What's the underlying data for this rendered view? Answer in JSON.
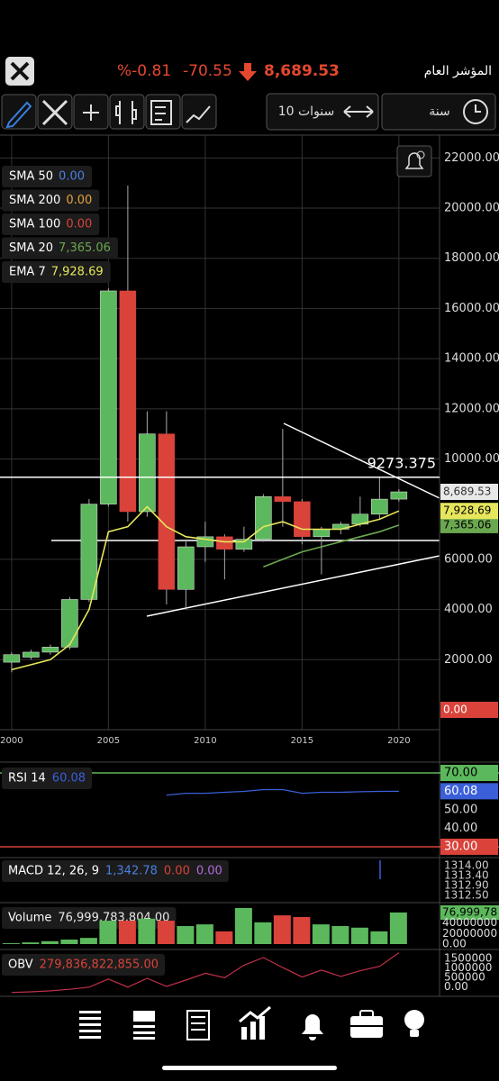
{
  "header": {
    "change_pct": "%-0.81",
    "change": "-70.55",
    "price": "8,689.53",
    "title": "المؤشر العام"
  },
  "toolbar": {
    "range": "10 سنوات",
    "interval": "سنة"
  },
  "chart_data": {
    "type": "candlestick",
    "x": [
      2000,
      2001,
      2002,
      2003,
      2004,
      2005,
      2006,
      2007,
      2008,
      2009,
      2010,
      2011,
      2012,
      2013,
      2014,
      2015,
      2016,
      2017,
      2018,
      2019,
      2020
    ],
    "open": [
      1900,
      2100,
      2300,
      2500,
      4400,
      8200,
      16700,
      7900,
      11000,
      4800,
      6500,
      6900,
      6400,
      6800,
      8500,
      8300,
      6900,
      7200,
      7400,
      7800,
      8400
    ],
    "high": [
      2300,
      2400,
      2600,
      4500,
      8400,
      16800,
      20900,
      11900,
      11900,
      6800,
      7500,
      7000,
      7300,
      8600,
      11200,
      8400,
      7300,
      7500,
      8500,
      9300,
      8800
    ],
    "low": [
      1500,
      2000,
      2200,
      2400,
      4300,
      8100,
      7500,
      7700,
      4200,
      4000,
      5900,
      5200,
      6300,
      6700,
      7300,
      6600,
      5400,
      7000,
      7300,
      7600,
      8300
    ],
    "close": [
      2200,
      2300,
      2500,
      4400,
      8200,
      16700,
      7900,
      11000,
      4800,
      6500,
      6900,
      6400,
      6800,
      8500,
      8300,
      6900,
      7200,
      7400,
      7800,
      8400,
      8689.53
    ],
    "up_color": "#5cb85c",
    "down_color": "#d9433a",
    "xlim": [
      1999.4,
      2022.1
    ],
    "xticks": [
      2000,
      2005,
      2010,
      2015,
      2020
    ],
    "ylim": [
      -790,
      22910
    ],
    "yticks": [
      {
        "value": 2000,
        "label": "2000.00"
      },
      {
        "value": 4000,
        "label": "4000.00"
      },
      {
        "value": 6000,
        "label": "6000.00"
      },
      {
        "value": 10000,
        "label": "10000.00"
      },
      {
        "value": 12000,
        "label": "12000.00"
      },
      {
        "value": 14000,
        "label": "14000.00"
      },
      {
        "value": 16000,
        "label": "16000.00"
      },
      {
        "value": 18000,
        "label": "18000.00"
      },
      {
        "value": 20000,
        "label": "20000.00"
      },
      {
        "value": 22000,
        "label": "22000.00"
      }
    ],
    "grid": true,
    "resistance": 9273.375,
    "last_price": 8689.53,
    "last_price_label": "8,689.53",
    "series": [
      {
        "name": "SMA 50",
        "color": "#4a7fe0",
        "last": 0,
        "last_label": "0.00",
        "tag": false
      },
      {
        "name": "SMA 200",
        "color": "#e8a33c",
        "last": 0,
        "last_label": "0.00",
        "tag": false
      },
      {
        "name": "SMA 100",
        "color": "#d9433a",
        "last": 0,
        "last_label": "0.00",
        "tag": true
      },
      {
        "name": "SMA 20",
        "color": "#6aa84f",
        "last": 7365.06,
        "last_label": "7,365.06",
        "tag": true,
        "values": [
          null,
          null,
          null,
          null,
          null,
          null,
          null,
          null,
          null,
          null,
          null,
          null,
          null,
          5700,
          6000,
          6300,
          6500,
          6700,
          6900,
          7100,
          7365.06
        ]
      },
      {
        "name": "EMA 7",
        "color": "#e6e65c",
        "last": 7928.69,
        "last_label": "7,928.69",
        "tag": true,
        "values": [
          1600,
          1800,
          2000,
          2600,
          4000,
          7100,
          7300,
          8100,
          7300,
          6900,
          6800,
          6700,
          6700,
          7300,
          7500,
          7200,
          7200,
          7200,
          7400,
          7600,
          7928.69
        ]
      }
    ],
    "rsi": {
      "label": "RSI 14",
      "value_label": "60.08",
      "color": "#3a5fd9",
      "values": [
        null,
        null,
        null,
        null,
        null,
        null,
        null,
        null,
        58,
        59,
        59,
        59.5,
        60,
        61,
        61,
        59,
        59.5,
        59.5,
        59.8,
        60,
        60.08
      ],
      "ylim": [
        25.1,
        74.9
      ],
      "yticks": [
        {
          "value": 70,
          "label": "70.00"
        },
        {
          "value": 50,
          "label": "50.00"
        },
        {
          "value": 40,
          "label": "40.00"
        },
        {
          "value": 30,
          "label": "30.00"
        }
      ],
      "levels": [
        {
          "value": 70,
          "color": "#5cb85c"
        },
        {
          "value": 30,
          "color": "#d9433a"
        }
      ]
    },
    "macd": {
      "label": "MACD 12, 26, 9",
      "readings": [
        {
          "text": "1,342.78",
          "color": "#4a7fe0"
        },
        {
          "text": "0.00",
          "color": "#d9433a"
        },
        {
          "text": "0.00",
          "color": "#b06ad9"
        }
      ],
      "axis_labels": [
        "1314.00",
        "1313.40",
        "1312.90",
        "1312.50"
      ]
    },
    "volume": {
      "label": "Volume",
      "value_label": "76,999,783,804.00",
      "values": [
        2000000000,
        4000000000,
        7000000000,
        11000000000,
        15000000000,
        57000000000,
        57000000000,
        62000000000,
        57000000000,
        44000000000,
        48000000000,
        31000000000,
        88000000000,
        53000000000,
        70000000000,
        66000000000,
        48000000000,
        44000000000,
        40000000000,
        31000000000,
        76999783804
      ],
      "ylim": [
        0,
        90000000000
      ],
      "axis_labels": [
        "76,999,78",
        "40000000",
        "20000000",
        "0.00"
      ]
    },
    "obv": {
      "label": "OBV",
      "value_label": "279,836,822,855.00",
      "color": "#c0304a",
      "values": [
        2000000000,
        6000000000,
        13000000000,
        24000000000,
        39000000000,
        96000000000,
        39000000000,
        101000000000,
        44000000000,
        88000000000,
        136000000000,
        105000000000,
        193000000000,
        246000000000,
        176000000000,
        110000000000,
        158000000000,
        114000000000,
        154000000000,
        185000000000,
        279836822855
      ],
      "ylim": [
        0,
        290000000000
      ],
      "axis_labels": [
        "1500000",
        "1000000",
        "500000",
        "0.00"
      ]
    }
  }
}
